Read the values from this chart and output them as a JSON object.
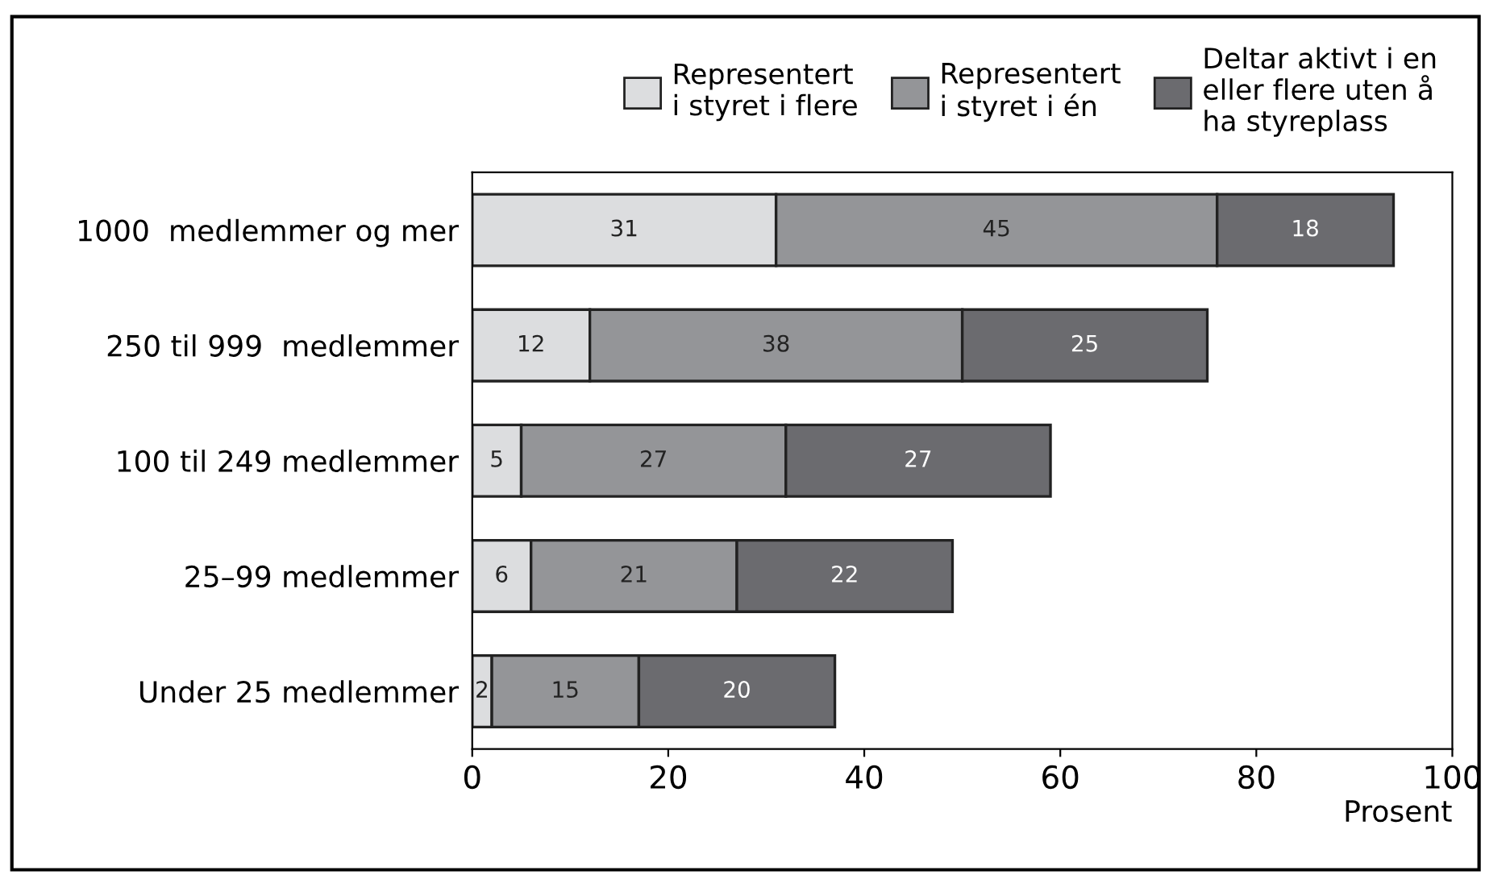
{
  "chart_data": {
    "type": "bar",
    "orientation": "horizontal",
    "stacked": true,
    "xlabel": "Prosent",
    "categories": [
      "1000  medlemmer og mer",
      "250 til 999  medlemmer",
      "100 til 249 medlemmer",
      "25–99 medlemmer",
      "Under 25 medlemmer"
    ],
    "series": [
      {
        "name": "Representert\ni styret i flere",
        "color": "#dcdddf",
        "values": [
          31,
          12,
          5,
          6,
          2
        ]
      },
      {
        "name": "Representert\ni styret i én",
        "color": "#949598",
        "values": [
          45,
          38,
          27,
          21,
          15
        ]
      },
      {
        "name": "Deltar aktivt i en\neller flere uten å\nha styreplass",
        "color": "#6b6b6f",
        "values": [
          18,
          25,
          27,
          22,
          20
        ]
      }
    ],
    "xlim": [
      0,
      100
    ],
    "xticks": [
      0,
      20,
      40,
      60,
      80,
      100
    ],
    "data_labels": true,
    "grid": false,
    "legend": "top right"
  }
}
